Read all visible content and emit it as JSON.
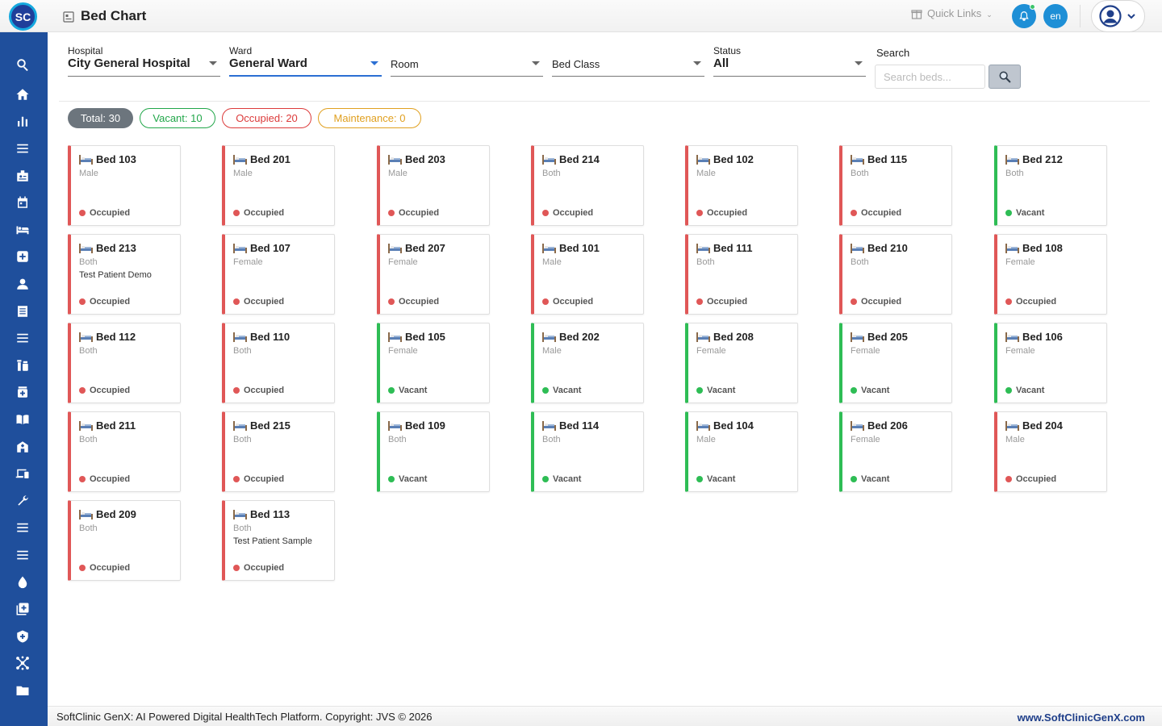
{
  "header": {
    "logo_text": "SC",
    "title": "Bed Chart",
    "quick_links": "Quick Links",
    "language": "en"
  },
  "sidebar": {
    "items": [
      "search-icon",
      "home-icon",
      "chart-icon",
      "menu-icon",
      "id-badge-icon",
      "calendar-icon",
      "bed-icon",
      "plus-square-icon",
      "person-icon",
      "document-icon",
      "menu-icon",
      "pharmacy-icon",
      "medkit-icon",
      "book-icon",
      "building-icon",
      "devices-icon",
      "wrench-icon",
      "menu-icon",
      "menu-icon",
      "drop-icon",
      "add-layers-icon",
      "shield-icon",
      "network-icon",
      "folder-icon"
    ]
  },
  "filters": {
    "hospital": {
      "label": "Hospital",
      "value": "City General Hospital"
    },
    "ward": {
      "label": "Ward",
      "value": "General Ward"
    },
    "room": {
      "placeholder": "Room"
    },
    "bed_class": {
      "placeholder": "Bed Class"
    },
    "status": {
      "label": "Status",
      "value": "All"
    },
    "search": {
      "label": "Search",
      "placeholder": "Search beds..."
    }
  },
  "summary": {
    "total": "Total: 30",
    "vacant": "Vacant: 10",
    "occupied": "Occupied: 20",
    "maintenance": "Maintenance: 0"
  },
  "beds": [
    {
      "name": "Bed 103",
      "gender": "Male",
      "patient": "",
      "status": "Occupied"
    },
    {
      "name": "Bed 201",
      "gender": "Male",
      "patient": "",
      "status": "Occupied"
    },
    {
      "name": "Bed 203",
      "gender": "Male",
      "patient": "",
      "status": "Occupied"
    },
    {
      "name": "Bed 214",
      "gender": "Both",
      "patient": "",
      "status": "Occupied"
    },
    {
      "name": "Bed 102",
      "gender": "Male",
      "patient": "",
      "status": "Occupied"
    },
    {
      "name": "Bed 115",
      "gender": "Both",
      "patient": "",
      "status": "Occupied"
    },
    {
      "name": "Bed 212",
      "gender": "Both",
      "patient": "",
      "status": "Vacant"
    },
    {
      "name": "Bed 213",
      "gender": "Both",
      "patient": "Test Patient Demo",
      "status": "Occupied"
    },
    {
      "name": "Bed 107",
      "gender": "Female",
      "patient": "",
      "status": "Occupied"
    },
    {
      "name": "Bed 207",
      "gender": "Female",
      "patient": "",
      "status": "Occupied"
    },
    {
      "name": "Bed 101",
      "gender": "Male",
      "patient": "",
      "status": "Occupied"
    },
    {
      "name": "Bed 111",
      "gender": "Both",
      "patient": "",
      "status": "Occupied"
    },
    {
      "name": "Bed 210",
      "gender": "Both",
      "patient": "",
      "status": "Occupied"
    },
    {
      "name": "Bed 108",
      "gender": "Female",
      "patient": "",
      "status": "Occupied"
    },
    {
      "name": "Bed 112",
      "gender": "Both",
      "patient": "",
      "status": "Occupied"
    },
    {
      "name": "Bed 110",
      "gender": "Both",
      "patient": "",
      "status": "Occupied"
    },
    {
      "name": "Bed 105",
      "gender": "Female",
      "patient": "",
      "status": "Vacant"
    },
    {
      "name": "Bed 202",
      "gender": "Male",
      "patient": "",
      "status": "Vacant"
    },
    {
      "name": "Bed 208",
      "gender": "Female",
      "patient": "",
      "status": "Vacant"
    },
    {
      "name": "Bed 205",
      "gender": "Female",
      "patient": "",
      "status": "Vacant"
    },
    {
      "name": "Bed 106",
      "gender": "Female",
      "patient": "",
      "status": "Vacant"
    },
    {
      "name": "Bed 211",
      "gender": "Both",
      "patient": "",
      "status": "Occupied"
    },
    {
      "name": "Bed 215",
      "gender": "Both",
      "patient": "",
      "status": "Occupied"
    },
    {
      "name": "Bed 109",
      "gender": "Both",
      "patient": "",
      "status": "Vacant"
    },
    {
      "name": "Bed 114",
      "gender": "Both",
      "patient": "",
      "status": "Vacant"
    },
    {
      "name": "Bed 104",
      "gender": "Male",
      "patient": "",
      "status": "Vacant"
    },
    {
      "name": "Bed 206",
      "gender": "Female",
      "patient": "",
      "status": "Vacant"
    },
    {
      "name": "Bed 204",
      "gender": "Male",
      "patient": "",
      "status": "Occupied"
    },
    {
      "name": "Bed 209",
      "gender": "Both",
      "patient": "",
      "status": "Occupied"
    },
    {
      "name": "Bed 113",
      "gender": "Both",
      "patient": "Test Patient Sample",
      "status": "Occupied"
    }
  ],
  "footer": {
    "text": "SoftClinic GenX: AI Powered Digital HealthTech Platform. Copyright: JVS © 2026",
    "link": "www.SoftClinicGenX.com"
  },
  "colors": {
    "sidebar": "#1f4f9c",
    "occupied": "#e05757",
    "vacant": "#2ebd55",
    "maintenance": "#e0a020",
    "accent": "#1e8fd6"
  }
}
